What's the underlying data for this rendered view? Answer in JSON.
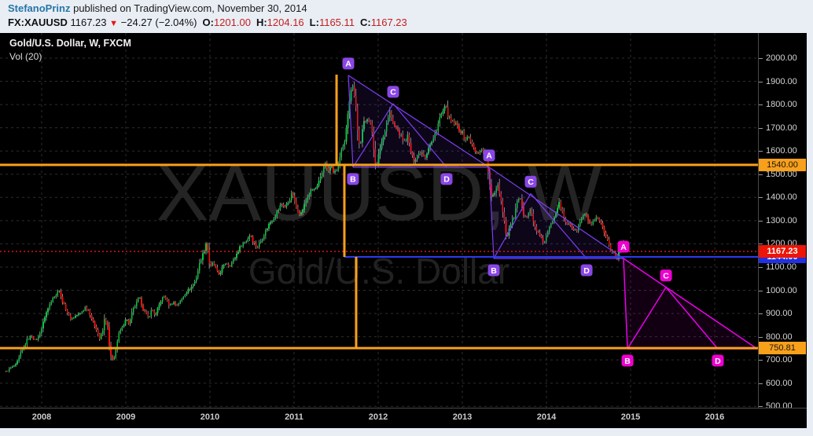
{
  "header": {
    "author": "StefanoPrinz",
    "published_text": "published on TradingView.com, November 30, 2014",
    "symbol": "FX:XAUUSD",
    "last": "1167.23",
    "down_arrow": "▼",
    "change": "−24.27 (−2.04%)",
    "ohlc": [
      {
        "k": "O:",
        "v": "1201.00"
      },
      {
        "k": "H:",
        "v": "1204.16"
      },
      {
        "k": "L:",
        "v": "1165.11"
      },
      {
        "k": "C:",
        "v": "1167.23"
      }
    ]
  },
  "chart": {
    "title": "Gold/U.S. Dollar, W, FXCM",
    "indicator": "Vol (20)",
    "watermark_line1": "XAUUSD, W",
    "watermark_line2": "Gold/U.S. Dollar"
  },
  "colors": {
    "up_candle": "#00c93f",
    "down_candle": "#ef1007",
    "wick": "#b0b0b0",
    "grid": "#2e2e2e",
    "orange": "#f9a01b",
    "blue_line": "#2b3bf0",
    "red_line": "#f3150c",
    "violet": "#7b3ff2",
    "violet_badge": "#8a46e6",
    "magenta": "#ea00ea",
    "magenta_badge": "#ee00d0",
    "watermark": "#242424"
  },
  "levels": [
    {
      "name": "resistance-1540",
      "price": 1540.0,
      "label": "1540.00",
      "color": "#f9a01b",
      "style": "solid",
      "thickness": 3,
      "label_bg": "#f9a01b",
      "label_fg": "#161616",
      "from_t": null
    },
    {
      "name": "support-750",
      "price": 750.81,
      "label": "750.81",
      "color": "#f9a01b",
      "style": "solid",
      "thickness": 3,
      "label_bg": "#f9a01b",
      "label_fg": "#161616",
      "from_t": null
    },
    {
      "name": "pattern-baseline-blue",
      "price": 1144.0,
      "label": "1144.00",
      "color": "#2b3bf0",
      "style": "solid",
      "thickness": 2,
      "label_bg": "#2230e0",
      "label_fg": "#ffffff",
      "from_t": 2011.598
    },
    {
      "name": "last-price",
      "price": 1167.23,
      "label": "1167.23",
      "color": "#f3150c",
      "style": "dotted",
      "thickness": 1.4,
      "label_bg": "#ec1507",
      "label_fg": "#ffffff",
      "from_t": null
    }
  ],
  "steps": [
    {
      "t": 2011.505,
      "from": 1929,
      "to": 1540
    },
    {
      "t": 2011.598,
      "from": 1540,
      "to": 1144
    },
    {
      "t": 2011.738,
      "from": 1144,
      "to": 750.81
    }
  ],
  "chart_data": {
    "type": "candlestick",
    "symbol": "XAUUSD",
    "interval": "W",
    "title": "Gold/U.S. Dollar, W, FXCM",
    "x_axis": {
      "label": "year",
      "range": [
        2007.5,
        2016.51
      ],
      "years": [
        2008,
        2009,
        2010,
        2011,
        2012,
        2013,
        2014,
        2015,
        2016
      ]
    },
    "y_axis": {
      "label": "USD",
      "range": [
        500,
        2000
      ],
      "tick_step": 100,
      "ticks": [
        2000,
        1900,
        1800,
        1700,
        1600,
        1500,
        1400,
        1300,
        1200,
        1100,
        1000,
        900,
        800,
        700,
        600,
        500
      ]
    },
    "anchors": [
      [
        2007.577,
        650
      ],
      [
        2007.63,
        665
      ],
      [
        2007.7,
        680
      ],
      [
        2007.75,
        730
      ],
      [
        2007.79,
        755
      ],
      [
        2007.83,
        790
      ],
      [
        2007.88,
        805
      ],
      [
        2007.92,
        783
      ],
      [
        2007.96,
        800
      ],
      [
        2008.0,
        838
      ],
      [
        2008.04,
        890
      ],
      [
        2008.08,
        925
      ],
      [
        2008.13,
        972
      ],
      [
        2008.17,
        975
      ],
      [
        2008.2,
        1012
      ],
      [
        2008.23,
        968
      ],
      [
        2008.27,
        933
      ],
      [
        2008.31,
        900
      ],
      [
        2008.35,
        875
      ],
      [
        2008.4,
        890
      ],
      [
        2008.46,
        900
      ],
      [
        2008.52,
        928
      ],
      [
        2008.56,
        913
      ],
      [
        2008.6,
        870
      ],
      [
        2008.65,
        833
      ],
      [
        2008.69,
        790
      ],
      [
        2008.73,
        830
      ],
      [
        2008.75,
        885
      ],
      [
        2008.79,
        830
      ],
      [
        2008.81,
        730
      ],
      [
        2008.85,
        690
      ],
      [
        2008.88,
        745
      ],
      [
        2008.92,
        816
      ],
      [
        2008.96,
        840
      ],
      [
        2009.0,
        880
      ],
      [
        2009.04,
        855
      ],
      [
        2009.08,
        912
      ],
      [
        2009.12,
        940
      ],
      [
        2009.16,
        970
      ],
      [
        2009.21,
        916
      ],
      [
        2009.27,
        880
      ],
      [
        2009.31,
        920
      ],
      [
        2009.35,
        890
      ],
      [
        2009.42,
        960
      ],
      [
        2009.46,
        975
      ],
      [
        2009.52,
        934
      ],
      [
        2009.56,
        950
      ],
      [
        2009.6,
        935
      ],
      [
        2009.65,
        953
      ],
      [
        2009.71,
        990
      ],
      [
        2009.77,
        1008
      ],
      [
        2009.83,
        1045
      ],
      [
        2009.88,
        1120
      ],
      [
        2009.93,
        1170
      ],
      [
        2009.96,
        1212
      ],
      [
        2010.0,
        1096
      ],
      [
        2010.04,
        1120
      ],
      [
        2010.1,
        1066
      ],
      [
        2010.15,
        1095
      ],
      [
        2010.19,
        1120
      ],
      [
        2010.23,
        1105
      ],
      [
        2010.29,
        1135
      ],
      [
        2010.33,
        1166
      ],
      [
        2010.38,
        1200
      ],
      [
        2010.44,
        1215
      ],
      [
        2010.48,
        1244
      ],
      [
        2010.52,
        1205
      ],
      [
        2010.56,
        1185
      ],
      [
        2010.6,
        1210
      ],
      [
        2010.65,
        1246
      ],
      [
        2010.71,
        1290
      ],
      [
        2010.75,
        1307
      ],
      [
        2010.81,
        1345
      ],
      [
        2010.85,
        1372
      ],
      [
        2010.9,
        1360
      ],
      [
        2010.94,
        1386
      ],
      [
        2010.98,
        1421
      ],
      [
        2011.02,
        1360
      ],
      [
        2011.08,
        1327
      ],
      [
        2011.13,
        1375
      ],
      [
        2011.17,
        1411
      ],
      [
        2011.21,
        1430
      ],
      [
        2011.27,
        1440
      ],
      [
        2011.33,
        1500
      ],
      [
        2011.37,
        1556
      ],
      [
        2011.4,
        1506
      ],
      [
        2011.44,
        1536
      ],
      [
        2011.48,
        1502
      ],
      [
        2011.52,
        1530
      ],
      [
        2011.56,
        1594
      ],
      [
        2011.6,
        1628
      ],
      [
        2011.63,
        1740
      ],
      [
        2011.66,
        1826
      ],
      [
        2011.69,
        1878
      ],
      [
        2011.705,
        1900
      ],
      [
        2011.72,
        1827
      ],
      [
        2011.74,
        1780
      ],
      [
        2011.76,
        1657
      ],
      [
        2011.79,
        1620
      ],
      [
        2011.81,
        1680
      ],
      [
        2011.83,
        1725
      ],
      [
        2011.87,
        1746
      ],
      [
        2011.9,
        1720
      ],
      [
        2011.93,
        1680
      ],
      [
        2011.96,
        1565
      ],
      [
        2011.98,
        1531
      ],
      [
        2012.02,
        1610
      ],
      [
        2012.06,
        1660
      ],
      [
        2012.1,
        1725
      ],
      [
        2012.14,
        1770
      ],
      [
        2012.18,
        1711
      ],
      [
        2012.23,
        1690
      ],
      [
        2012.27,
        1662
      ],
      [
        2012.31,
        1640
      ],
      [
        2012.35,
        1664
      ],
      [
        2012.39,
        1590
      ],
      [
        2012.42,
        1558
      ],
      [
        2012.47,
        1585
      ],
      [
        2012.52,
        1598
      ],
      [
        2012.56,
        1575
      ],
      [
        2012.6,
        1618
      ],
      [
        2012.65,
        1645
      ],
      [
        2012.69,
        1692
      ],
      [
        2012.73,
        1740
      ],
      [
        2012.77,
        1771
      ],
      [
        2012.8,
        1790
      ],
      [
        2012.84,
        1740
      ],
      [
        2012.88,
        1720
      ],
      [
        2012.92,
        1715
      ],
      [
        2012.96,
        1695
      ],
      [
        2013.0,
        1676
      ],
      [
        2013.04,
        1650
      ],
      [
        2013.08,
        1661
      ],
      [
        2013.13,
        1610
      ],
      [
        2013.17,
        1588
      ],
      [
        2013.21,
        1608
      ],
      [
        2013.25,
        1597
      ],
      [
        2013.29,
        1561
      ],
      [
        2013.32,
        1477
      ],
      [
        2013.34,
        1395
      ],
      [
        2013.38,
        1420
      ],
      [
        2013.42,
        1462
      ],
      [
        2013.46,
        1387
      ],
      [
        2013.5,
        1295
      ],
      [
        2013.53,
        1224
      ],
      [
        2013.57,
        1284
      ],
      [
        2013.61,
        1313
      ],
      [
        2013.65,
        1377
      ],
      [
        2013.69,
        1395
      ],
      [
        2013.72,
        1327
      ],
      [
        2013.77,
        1324
      ],
      [
        2013.81,
        1350
      ],
      [
        2013.85,
        1283
      ],
      [
        2013.89,
        1253
      ],
      [
        2013.93,
        1225
      ],
      [
        2013.97,
        1205
      ],
      [
        2014.01,
        1244
      ],
      [
        2014.06,
        1290
      ],
      [
        2014.1,
        1326
      ],
      [
        2014.15,
        1384
      ],
      [
        2014.19,
        1330
      ],
      [
        2014.23,
        1284
      ],
      [
        2014.27,
        1291
      ],
      [
        2014.31,
        1268
      ],
      [
        2014.35,
        1250
      ],
      [
        2014.4,
        1293
      ],
      [
        2014.44,
        1327
      ],
      [
        2014.48,
        1316
      ],
      [
        2014.52,
        1282
      ],
      [
        2014.56,
        1293
      ],
      [
        2014.6,
        1310
      ],
      [
        2014.65,
        1287
      ],
      [
        2014.69,
        1240
      ],
      [
        2014.73,
        1208
      ],
      [
        2014.77,
        1173
      ],
      [
        2014.81,
        1160
      ],
      [
        2014.84,
        1131
      ],
      [
        2014.87,
        1180
      ],
      [
        2014.9,
        1198
      ],
      [
        2014.915,
        1167.23
      ]
    ],
    "last_close": 1167.23,
    "patterns": [
      {
        "id": "abcd-triangle-1",
        "palette": "violet",
        "points": {
          "A": [
            2011.645,
            1926
          ],
          "B": [
            2011.7,
            1530
          ],
          "C": [
            2012.178,
            1804
          ],
          "D": [
            2012.813,
            1530
          ],
          "E": [
            2013.318,
            1530
          ]
        }
      },
      {
        "id": "abcd-triangle-2",
        "palette": "violet",
        "points": {
          "A": [
            2013.318,
            1530
          ],
          "B": [
            2013.374,
            1137
          ],
          "C": [
            2013.813,
            1417
          ],
          "D": [
            2014.477,
            1137
          ],
          "E": [
            2014.916,
            1137
          ]
        }
      },
      {
        "id": "abcd-triangle-3",
        "palette": "magenta",
        "points": {
          "A": [
            2014.916,
            1137
          ],
          "B": [
            2014.963,
            748
          ],
          "C": [
            2015.421,
            1013
          ],
          "D": [
            2016.037,
            748
          ],
          "E": [
            2016.505,
            748
          ]
        }
      }
    ]
  }
}
